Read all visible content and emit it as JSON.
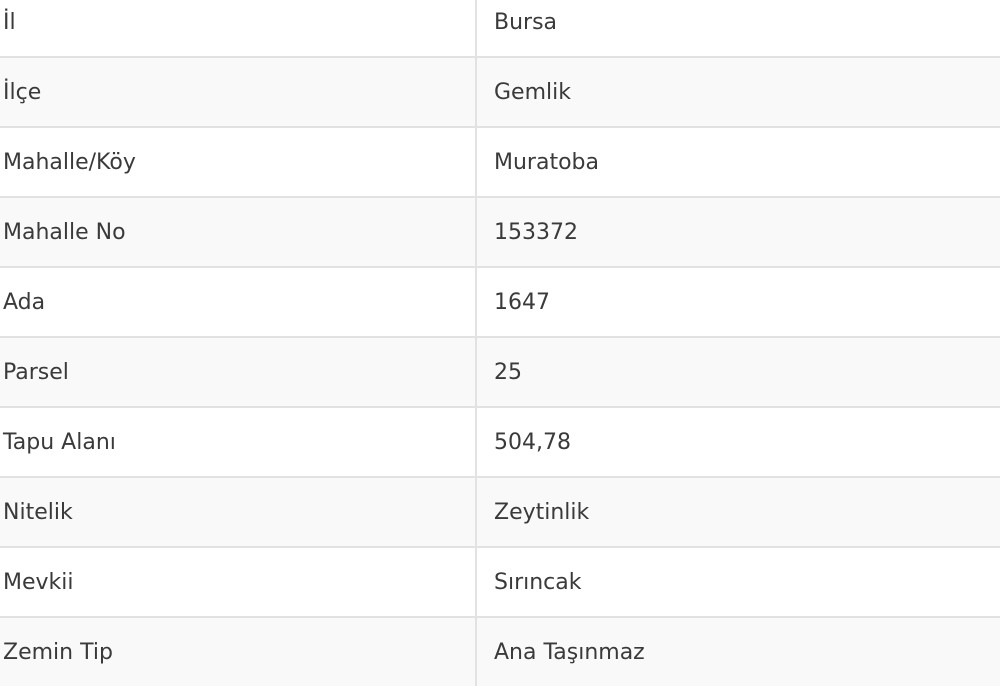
{
  "rows": [
    {
      "label": "İl",
      "value": "Bursa"
    },
    {
      "label": "İlçe",
      "value": "Gemlik"
    },
    {
      "label": "Mahalle/Köy",
      "value": "Muratoba"
    },
    {
      "label": "Mahalle No",
      "value": "153372"
    },
    {
      "label": "Ada",
      "value": "1647"
    },
    {
      "label": "Parsel",
      "value": "25"
    },
    {
      "label": "Tapu Alanı",
      "value": "504,78"
    },
    {
      "label": "Nitelik",
      "value": "Zeytinlik"
    },
    {
      "label": "Mevkii",
      "value": "Sırıncak"
    },
    {
      "label": "Zemin Tip",
      "value": "Ana Taşınmaz"
    }
  ]
}
